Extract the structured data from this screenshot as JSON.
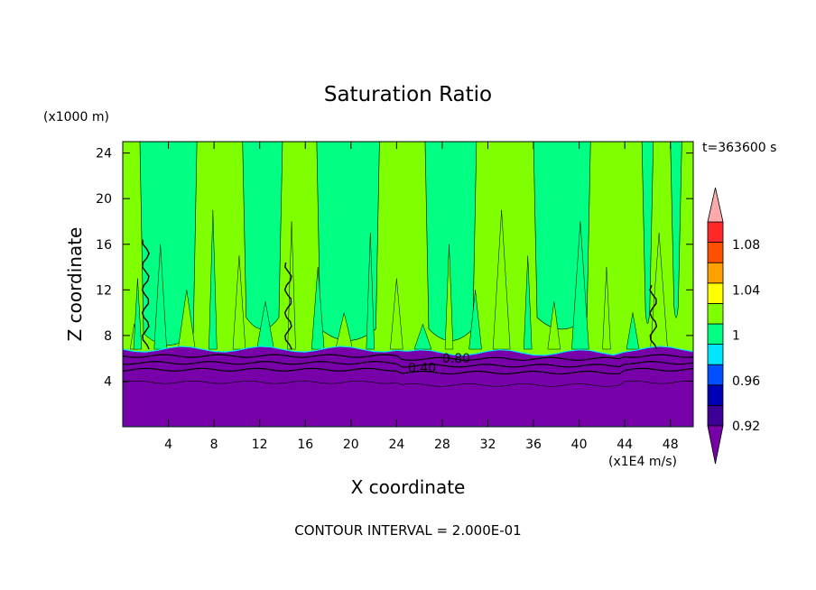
{
  "chart_data": {
    "type": "heatmap",
    "title": "Saturation Ratio",
    "xlabel": "X coordinate",
    "ylabel": "Z coordinate",
    "x_unit": "(x1E4 m/s)",
    "y_unit": "(x1000 m)",
    "time_label": "t=363600 s",
    "footer": "CONTOUR INTERVAL = 2.000E-01",
    "xlim": [
      0,
      50
    ],
    "ylim": [
      0,
      25
    ],
    "x_ticks": [
      4,
      8,
      12,
      16,
      20,
      24,
      28,
      32,
      36,
      40,
      44,
      48
    ],
    "y_ticks": [
      4,
      8,
      12,
      16,
      20,
      24
    ],
    "contour_labels": [
      {
        "text": "0.80",
        "x": 28,
        "z": 6.0
      },
      {
        "text": "0.40",
        "x": 25,
        "z": 5.2
      }
    ],
    "colorbar": {
      "levels": [
        0.92,
        0.94,
        0.96,
        0.98,
        1.0,
        1.02,
        1.04,
        1.06,
        1.08,
        1.1
      ],
      "colors": [
        "#3c0096",
        "#0000b4",
        "#0050ff",
        "#00e6ff",
        "#00ff82",
        "#80ff00",
        "#ffff00",
        "#ffa000",
        "#ff5000",
        "#ff2828"
      ],
      "under_color": "#7800a8",
      "over_color": "#ffaaaa",
      "tick_labels": [
        {
          "text": "0.92",
          "value": 0.92
        },
        {
          "text": "0.96",
          "value": 0.96
        },
        {
          "text": "1",
          "value": 1.0
        },
        {
          "text": "1.04",
          "value": 1.04
        },
        {
          "text": "1.08",
          "value": 1.08
        }
      ]
    },
    "fields": {
      "dry_layer_color": "#7800a8",
      "moist_green": "#00ff82",
      "supersat_green": "#80ff00",
      "layer_top_z": 6.8,
      "saturated_columns": [
        {
          "x0": 1.5,
          "x1": 6.5,
          "z_bottom": 6.6
        },
        {
          "x0": 10.5,
          "x1": 14.0,
          "z_bottom": 8.0
        },
        {
          "x0": 17.0,
          "x1": 22.5,
          "z_bottom": 7.0
        },
        {
          "x0": 26.5,
          "x1": 31.0,
          "z_bottom": 7.0
        },
        {
          "x0": 36.0,
          "x1": 41.0,
          "z_bottom": 8.0
        },
        {
          "x0": 45.5,
          "x1": 46.5,
          "z_bottom": 8.5
        },
        {
          "x0": 48.0,
          "x1": 49.0,
          "z_bottom": 9.0
        }
      ]
    }
  }
}
